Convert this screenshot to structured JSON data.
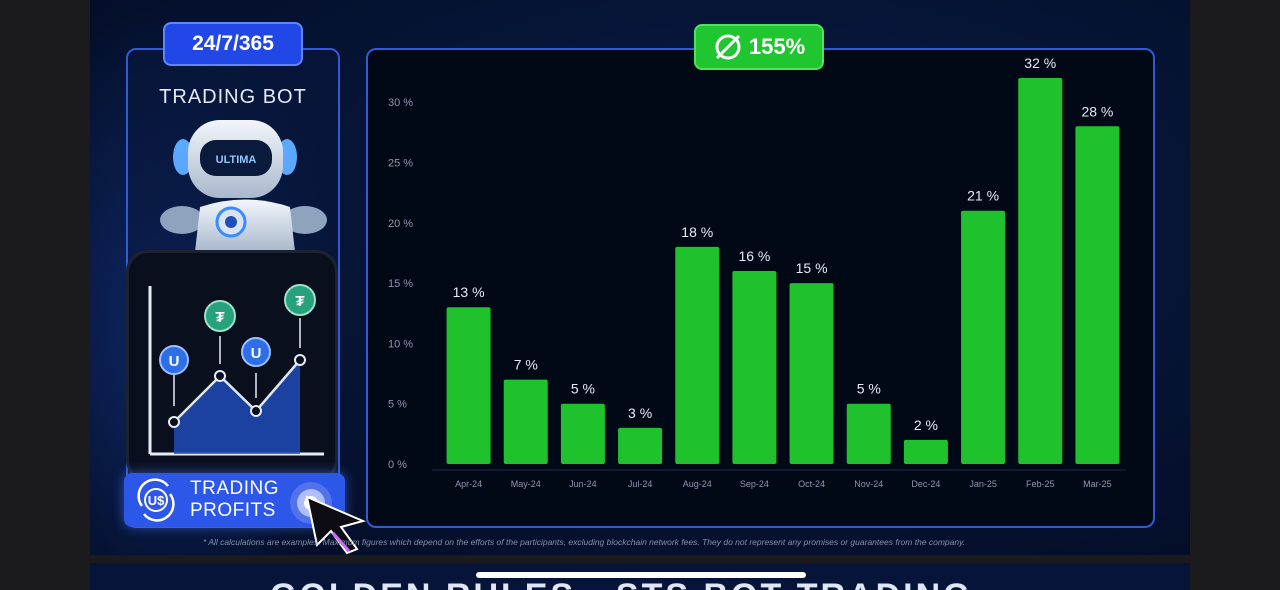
{
  "left_card": {
    "badge": "24/7/365",
    "title": "TRADING BOT",
    "robot_visor_text": "ULTIMA",
    "profits_label_line1": "TRADING",
    "profits_label_line2": "PROFITS",
    "profits_icon_text": "U$"
  },
  "chart_badge": {
    "icon": "average-icon",
    "value": "155%"
  },
  "chart_data": {
    "type": "bar",
    "categories": [
      "Apr-24",
      "May-24",
      "Jun-24",
      "Jul-24",
      "Aug-24",
      "Sep-24",
      "Oct-24",
      "Nov-24",
      "Dec-24",
      "Jan-25",
      "Feb-25",
      "Mar-25"
    ],
    "values": [
      13,
      7,
      5,
      3,
      18,
      16,
      15,
      5,
      2,
      21,
      32,
      28
    ],
    "data_labels": [
      "13 %",
      "7 %",
      "5 %",
      "3 %",
      "18 %",
      "16 %",
      "15 %",
      "5 %",
      "2 %",
      "21 %",
      "32 %",
      "28 %"
    ],
    "y_ticks": [
      0,
      5,
      10,
      15,
      20,
      25,
      30
    ],
    "y_tick_labels": [
      "0 %",
      "5 %",
      "10 %",
      "15 %",
      "20 %",
      "25 %",
      "30 %"
    ],
    "ylim": [
      0,
      32
    ],
    "bar_color": "#1fc12c",
    "grid": false,
    "title": "",
    "xlabel": "",
    "ylabel": ""
  },
  "footnote": "* All calculations are examples. Maximum figures which depend on the efforts of the participants, excluding blockchain network fees. They do not represent any promises or guarantees from the company.",
  "bottom_strip_text": "GOLDEN RULES • STS BOT TRADING"
}
